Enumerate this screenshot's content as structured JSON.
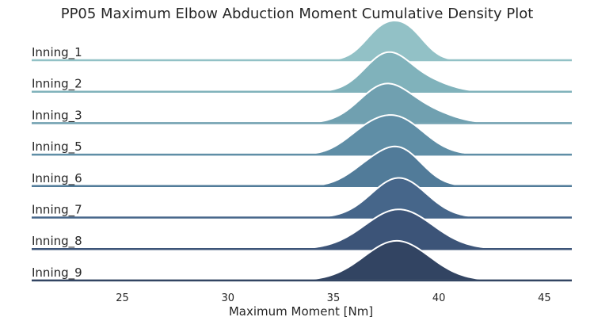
{
  "chart_data": {
    "type": "ridgeline",
    "title": "PP05 Maximum Elbow Abduction Moment Cumulative Density Plot",
    "xlabel": "Maximum Moment [Nm]",
    "ylabel": "",
    "xlim": [
      20.7,
      46.3
    ],
    "xticks": [
      25,
      30,
      35,
      40,
      45
    ],
    "grid": false,
    "legend": "none",
    "series": [
      {
        "name": "Inning_1",
        "color": "#92c1c6",
        "components": [
          {
            "mean": 37.3,
            "sd": 0.85,
            "weight": 0.55
          },
          {
            "mean": 38.6,
            "sd": 0.8,
            "weight": 0.45
          }
        ]
      },
      {
        "name": "Inning_2",
        "color": "#80b2bb",
        "components": [
          {
            "mean": 37.6,
            "sd": 1.1,
            "weight": 0.85
          },
          {
            "mean": 39.7,
            "sd": 1.0,
            "weight": 0.15
          }
        ]
      },
      {
        "name": "Inning_3",
        "color": "#70a0b0",
        "components": [
          {
            "mean": 37.5,
            "sd": 1.25,
            "weight": 0.85
          },
          {
            "mean": 39.8,
            "sd": 1.1,
            "weight": 0.15
          }
        ]
      },
      {
        "name": "Inning_5",
        "color": "#5f8ea6",
        "components": [
          {
            "mean": 38.0,
            "sd": 1.3,
            "weight": 0.8
          },
          {
            "mean": 36.3,
            "sd": 1.0,
            "weight": 0.2
          }
        ]
      },
      {
        "name": "Inning_6",
        "color": "#517b99",
        "components": [
          {
            "mean": 38.2,
            "sd": 1.05,
            "weight": 0.7
          },
          {
            "mean": 36.6,
            "sd": 1.0,
            "weight": 0.3
          }
        ]
      },
      {
        "name": "Inning_7",
        "color": "#46668a",
        "components": [
          {
            "mean": 38.1,
            "sd": 1.3,
            "weight": 1.0
          }
        ]
      },
      {
        "name": "Inning_8",
        "color": "#3c5478",
        "components": [
          {
            "mean": 38.1,
            "sd": 1.6,
            "weight": 1.0
          }
        ]
      },
      {
        "name": "Inning_9",
        "color": "#324462",
        "components": [
          {
            "mean": 38.0,
            "sd": 1.55,
            "weight": 1.0
          }
        ]
      }
    ]
  }
}
